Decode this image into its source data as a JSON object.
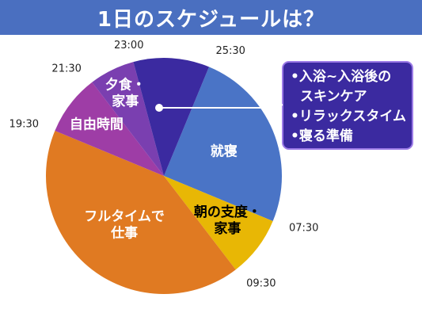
{
  "title": "1日のスケジュールは？",
  "chart_data": {
    "type": "pie",
    "unit": "time of day (hours)",
    "slices": [
      {
        "start": "01:30",
        "end": "07:30",
        "start_h": 1.5,
        "end_h": 7.5,
        "lines": [
          "就寝"
        ],
        "color": "#4a74c6",
        "label_dark": false
      },
      {
        "start": "07:30",
        "end": "09:30",
        "start_h": 7.5,
        "end_h": 9.5,
        "lines": [
          "朝の支度・",
          "家事"
        ],
        "color": "#e8b705",
        "label_dark": true
      },
      {
        "start": "09:30",
        "end": "19:30",
        "start_h": 9.5,
        "end_h": 19.5,
        "lines": [
          "フルタイムで",
          "仕事"
        ],
        "color": "#e07a22",
        "label_dark": false
      },
      {
        "start": "19:30",
        "end": "21:30",
        "start_h": 19.5,
        "end_h": 21.5,
        "lines": [
          "自由時間"
        ],
        "color": "#9e3da6",
        "label_dark": false
      },
      {
        "start": "21:30",
        "end": "23:00",
        "start_h": 21.5,
        "end_h": 23.0,
        "lines": [
          "夕食・",
          "家事"
        ],
        "color": "#7a3fb0",
        "label_dark": false
      },
      {
        "start": "23:00",
        "end": "01:30",
        "start_h": 23.0,
        "end_h": 25.5,
        "lines": [],
        "color": "#3b2aa0",
        "label_dark": false
      }
    ],
    "tick_labels": [
      {
        "text": "25:30",
        "h": 1.5
      },
      {
        "text": "07:30",
        "h": 7.5
      },
      {
        "text": "09:30",
        "h": 9.5
      },
      {
        "text": "19:30",
        "h": 19.5
      },
      {
        "text": "21:30",
        "h": 21.5
      },
      {
        "text": "23:00",
        "h": 23.0
      }
    ],
    "annotation": {
      "items": [
        "入浴~入浴後の",
        "スキンケア",
        "•リラックスタイム",
        "•寝る準備"
      ],
      "bg": "#3b2aa0",
      "border": "#9c7be6"
    }
  }
}
